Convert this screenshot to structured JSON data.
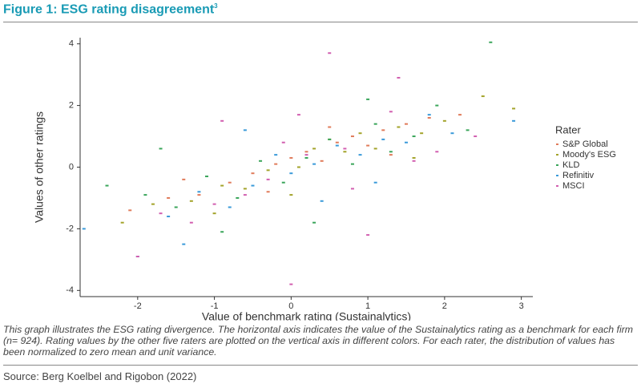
{
  "header": {
    "title": "Figure 1: ESG rating disagreement",
    "superscript": "3"
  },
  "chart_data": {
    "type": "scatter",
    "x_label": "Value of benchmark rating (Sustainalytics)",
    "y_label": "Values of other ratings",
    "legend_title": "Rater",
    "legend_position": "right",
    "xlim": [
      -2.75,
      3.15
    ],
    "xticks": [
      -2,
      -1,
      0,
      1,
      2,
      3
    ],
    "ylim": [
      -4.2,
      4.2
    ],
    "yticks": [
      -4,
      -2,
      0,
      2,
      4
    ],
    "series": [
      {
        "name": "S&P Global",
        "color": "#e07b5a",
        "x": [
          -2.1,
          -1.6,
          -1.2,
          -0.8,
          -0.5,
          -0.2,
          0.0,
          0.2,
          0.4,
          0.6,
          0.8,
          1.0,
          1.2,
          1.5,
          1.8,
          2.2,
          -1.4,
          -0.3,
          0.5,
          1.3
        ],
        "values": [
          -1.4,
          -1.0,
          -0.9,
          -0.5,
          -0.2,
          0.1,
          0.3,
          0.5,
          0.2,
          0.8,
          1.0,
          0.7,
          1.2,
          1.4,
          1.6,
          1.7,
          -0.4,
          -0.8,
          1.3,
          0.4
        ]
      },
      {
        "name": "Moody's ESG",
        "color": "#a3a32a",
        "x": [
          -2.2,
          -1.8,
          -1.3,
          -0.9,
          -0.6,
          -0.3,
          0.1,
          0.3,
          0.7,
          0.9,
          1.1,
          1.4,
          1.7,
          2.0,
          2.5,
          -1.0,
          0.0,
          0.5,
          1.6,
          2.9
        ],
        "values": [
          -1.8,
          -1.2,
          -1.1,
          -0.6,
          -0.7,
          -0.1,
          0.0,
          0.6,
          0.5,
          1.1,
          0.6,
          1.3,
          1.1,
          1.5,
          2.3,
          -1.5,
          -0.9,
          0.9,
          0.3,
          1.9
        ]
      },
      {
        "name": "KLD",
        "color": "#3aa55a",
        "x": [
          -2.4,
          -1.9,
          -1.5,
          -1.1,
          -0.7,
          -0.4,
          -0.1,
          0.2,
          0.5,
          0.8,
          1.1,
          1.3,
          1.6,
          1.9,
          2.3,
          2.6,
          -0.9,
          0.3,
          1.0,
          -1.7
        ],
        "values": [
          -0.6,
          -0.9,
          -1.3,
          -0.3,
          -1.0,
          0.2,
          -0.5,
          0.3,
          0.9,
          0.1,
          1.4,
          0.5,
          1.0,
          2.0,
          1.2,
          4.05,
          -2.1,
          -1.8,
          2.2,
          0.6
        ]
      },
      {
        "name": "Refinitiv",
        "color": "#3a9ad9",
        "x": [
          -2.7,
          -2.0,
          -1.6,
          -1.2,
          -0.8,
          -0.5,
          -0.2,
          0.0,
          0.3,
          0.6,
          0.9,
          1.2,
          1.5,
          1.8,
          2.1,
          2.9,
          -1.4,
          -0.6,
          0.4,
          1.1
        ],
        "values": [
          -2.0,
          -2.9,
          -1.6,
          -0.8,
          -1.3,
          -0.6,
          0.4,
          -0.2,
          0.1,
          0.7,
          0.4,
          0.9,
          0.8,
          1.7,
          1.1,
          1.5,
          -2.5,
          1.2,
          -1.1,
          -0.5
        ]
      },
      {
        "name": "MSCI",
        "color": "#d25fb0",
        "x": [
          -2.0,
          -1.7,
          -1.3,
          -1.0,
          -0.6,
          -0.3,
          -0.1,
          0.0,
          0.2,
          0.5,
          0.7,
          1.0,
          1.3,
          1.6,
          1.9,
          2.4,
          -0.9,
          0.1,
          0.8,
          1.4
        ],
        "values": [
          -2.9,
          -1.5,
          -1.8,
          -1.2,
          -0.9,
          -0.4,
          0.8,
          -3.8,
          0.4,
          3.7,
          0.6,
          -2.2,
          1.8,
          0.2,
          0.5,
          1.0,
          1.5,
          1.7,
          -0.7,
          2.9
        ]
      }
    ]
  },
  "caption": "This graph illustrates the ESG rating divergence. The horizontal axis indicates the value of the Sustainalytics rating as a benchmark for each firm (n= 924). Rating values by the other five raters are plotted on the vertical axis in different colors. For each rater, the distribution of values has been normalized to zero mean and unit variance.",
  "source": "Source: Berg Koelbel and Rigobon (2022)"
}
